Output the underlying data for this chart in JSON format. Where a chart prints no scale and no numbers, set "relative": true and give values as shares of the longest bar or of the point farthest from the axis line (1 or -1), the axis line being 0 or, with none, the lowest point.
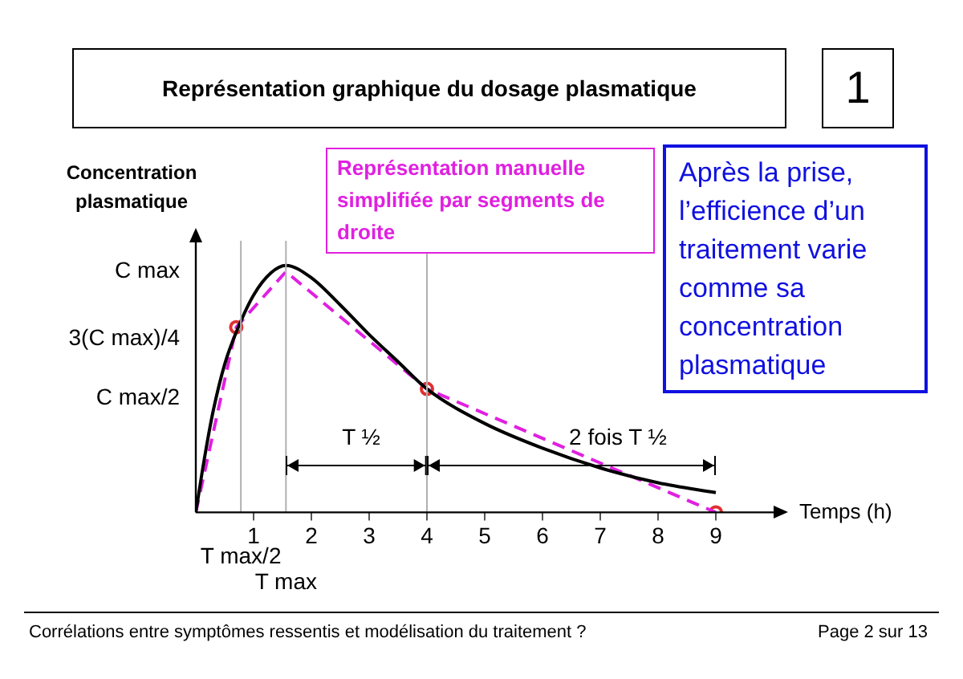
{
  "chart_data": {
    "type": "line",
    "title": "Représentation graphique du dosage plasmatique",
    "xlabel": "Temps (h)",
    "ylabel": "Concentration plasmatique",
    "relative": true,
    "xlim": [
      0,
      10
    ],
    "xticks": [
      1,
      2,
      3,
      4,
      5,
      6,
      7,
      8,
      9
    ],
    "grid": false,
    "series": [
      {
        "color": "#000000",
        "line_style": "solid",
        "marker": "none",
        "x": [
          0,
          0.15,
          0.3,
          0.5,
          0.7,
          1,
          1.3,
          1.56,
          2,
          2.5,
          3,
          3.5,
          4,
          5,
          6,
          7,
          8,
          9
        ],
        "values": [
          0,
          0.22,
          0.41,
          0.6,
          0.73,
          0.88,
          0.97,
          1,
          0.95,
          0.84,
          0.72,
          0.61,
          0.5,
          0.36,
          0.26,
          0.18,
          0.12,
          0.08
        ]
      },
      {
        "name": "Représentation manuelle simplifiée par segments de droite",
        "color": "#e020e0",
        "line_style": "dashed",
        "marker": "none",
        "x": [
          0,
          0.7,
          1.56,
          4,
          9
        ],
        "values": [
          0,
          0.75,
          0.975,
          0.5,
          0
        ]
      },
      {
        "type": "scatter",
        "color": "#e03030",
        "marker": "circle",
        "x": [
          0.7,
          4,
          9
        ],
        "values": [
          0.75,
          0.5,
          0
        ]
      }
    ],
    "ref_lines": [
      {
        "axis": "x",
        "value": 0.78,
        "label": "T max/2",
        "color": "#b0b0b0"
      },
      {
        "axis": "x",
        "value": 1.56,
        "label": "T max",
        "color": "#b0b0b0"
      },
      {
        "axis": "x",
        "value": 4,
        "color": "#b0b0b0"
      }
    ],
    "annotations": [
      "1",
      "Après la prise, l’efficience d’un traitement varie comme sa concentration plasmatique",
      "Corrélations entre symptômes ressentis et modélisation du traitement ?",
      "Page 2 sur 13",
      "C max",
      "3(C max)/4",
      "C max/2",
      "T ½",
      "2 fois T ½"
    ]
  }
}
